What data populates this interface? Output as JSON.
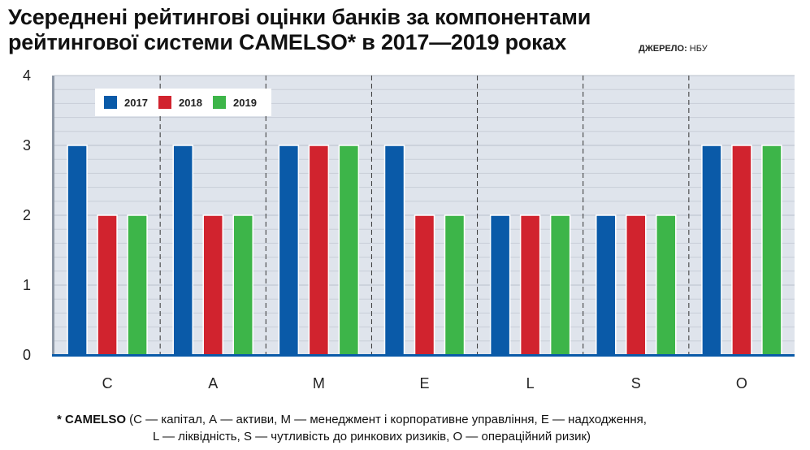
{
  "title_line1": "Усереднені рейтингові оцінки банків за компонентами",
  "title_line2": "рейтингової системи CAMELSO* в 2017—2019 роках",
  "source_label": "ДЖЕРЕЛО:",
  "source_value": "НБУ",
  "footnote": {
    "label": "* CAMELSO",
    "line1": " (С — капітал, А — активи, М — менеджмент і корпоративне управління, Е — надходження,",
    "line2": "L — ліквідність, S — чутливість до ринкових ризиків, О — операційний ризик)"
  },
  "chart_data": {
    "type": "bar",
    "categories": [
      "C",
      "A",
      "M",
      "E",
      "L",
      "S",
      "O"
    ],
    "series": [
      {
        "name": "2017",
        "color": "#0a5aa8",
        "values": [
          3,
          3,
          3,
          3,
          2,
          2,
          3
        ]
      },
      {
        "name": "2018",
        "color": "#d1232e",
        "values": [
          2,
          2,
          3,
          2,
          2,
          2,
          3
        ]
      },
      {
        "name": "2019",
        "color": "#3db549",
        "values": [
          2,
          2,
          3,
          2,
          2,
          2,
          3
        ]
      }
    ],
    "y_ticks": [
      "0",
      "1",
      "2",
      "3",
      "4"
    ],
    "ylim": [
      0,
      4
    ],
    "grid": true,
    "legend_position": "top-left"
  }
}
